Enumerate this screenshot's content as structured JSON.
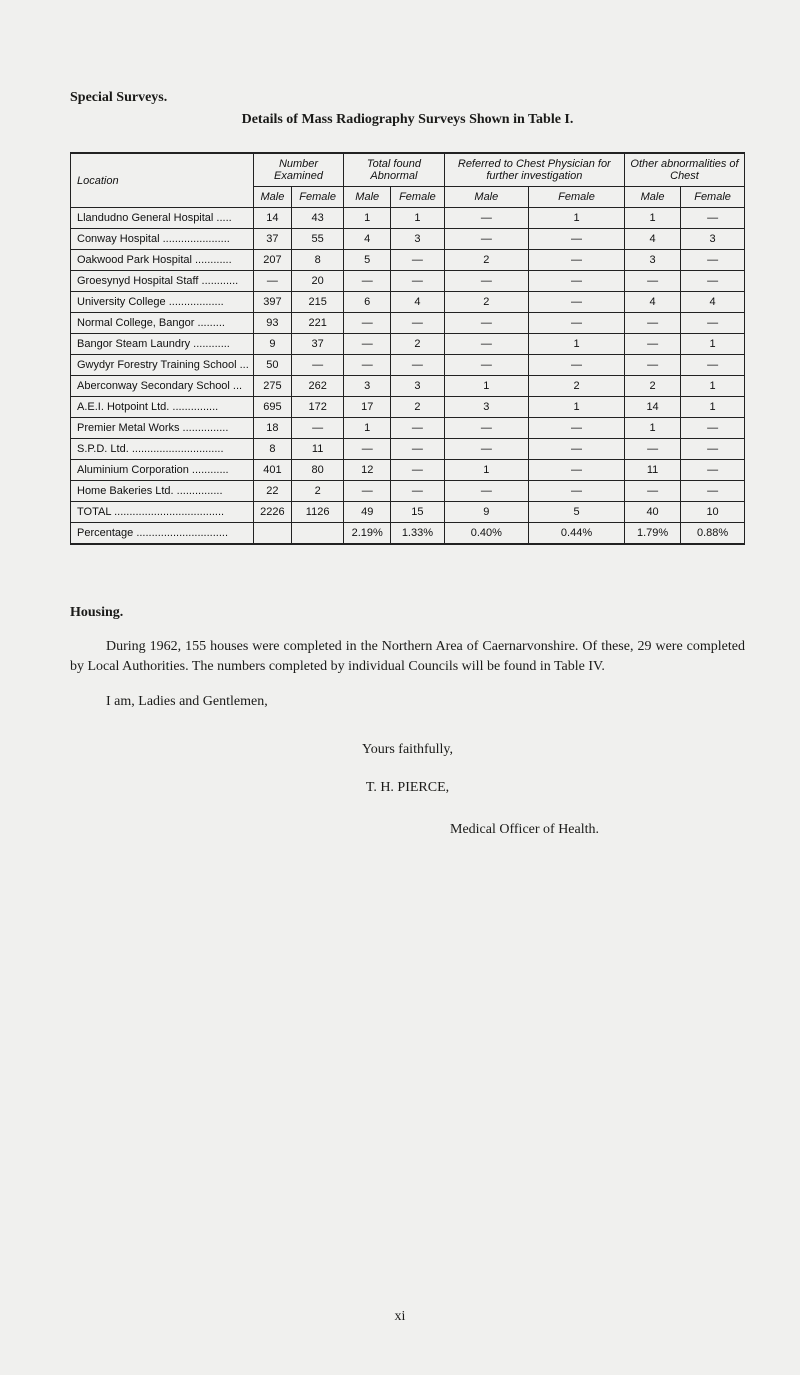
{
  "heading1": "Special Surveys.",
  "heading2": "Details of Mass Radiography Surveys Shown in Table I.",
  "table": {
    "header": {
      "location": "Location",
      "groups": [
        {
          "title": "Number\nExamined",
          "cols": [
            "Male",
            "Female"
          ]
        },
        {
          "title": "Total\nfound\nAbnormal",
          "cols": [
            "Male",
            "Female"
          ]
        },
        {
          "title": "Referred to\nChest Physician\nfor further\ninvestigation",
          "cols": [
            "Male",
            "Female"
          ]
        },
        {
          "title": "Other\nabnormalities\nof Chest",
          "cols": [
            "Male",
            "Female"
          ]
        }
      ]
    },
    "rows": [
      {
        "loc": "Llandudno General Hospital .....",
        "c": [
          "14",
          "43",
          "1",
          "1",
          "—",
          "1",
          "1",
          "—"
        ]
      },
      {
        "loc": "Conway Hospital ......................",
        "c": [
          "37",
          "55",
          "4",
          "3",
          "—",
          "—",
          "4",
          "3"
        ]
      },
      {
        "loc": "Oakwood Park Hospital ............",
        "c": [
          "207",
          "8",
          "5",
          "—",
          "2",
          "—",
          "3",
          "—"
        ]
      },
      {
        "loc": "Groesynyd Hospital Staff ............",
        "c": [
          "—",
          "20",
          "—",
          "—",
          "—",
          "—",
          "—",
          "—"
        ]
      },
      {
        "loc": "University College ..................",
        "c": [
          "397",
          "215",
          "6",
          "4",
          "2",
          "—",
          "4",
          "4"
        ]
      },
      {
        "loc": "Normal College, Bangor .........",
        "c": [
          "93",
          "221",
          "—",
          "—",
          "—",
          "—",
          "—",
          "—"
        ]
      },
      {
        "loc": "Bangor Steam Laundry ............",
        "c": [
          "9",
          "37",
          "—",
          "2",
          "—",
          "1",
          "—",
          "1"
        ]
      },
      {
        "loc": "Gwydyr Forestry Training School ...",
        "c": [
          "50",
          "—",
          "—",
          "—",
          "—",
          "—",
          "—",
          "—"
        ]
      },
      {
        "loc": "Aberconway Secondary School ...",
        "c": [
          "275",
          "262",
          "3",
          "3",
          "1",
          "2",
          "2",
          "1"
        ]
      },
      {
        "loc": "A.E.I. Hotpoint Ltd. ...............",
        "c": [
          "695",
          "172",
          "17",
          "2",
          "3",
          "1",
          "14",
          "1"
        ]
      },
      {
        "loc": "Premier Metal Works ...............",
        "c": [
          "18",
          "—",
          "1",
          "—",
          "—",
          "—",
          "1",
          "—"
        ]
      },
      {
        "loc": "S.P.D. Ltd. ..............................",
        "c": [
          "8",
          "11",
          "—",
          "—",
          "—",
          "—",
          "—",
          "—"
        ]
      },
      {
        "loc": "Aluminium Corporation ............",
        "c": [
          "401",
          "80",
          "12",
          "—",
          "1",
          "—",
          "11",
          "—"
        ]
      },
      {
        "loc": "Home Bakeries Ltd. ...............",
        "c": [
          "22",
          "2",
          "—",
          "—",
          "—",
          "—",
          "—",
          "—"
        ]
      },
      {
        "loc": "TOTAL ....................................",
        "c": [
          "2226",
          "1126",
          "49",
          "15",
          "9",
          "5",
          "40",
          "10"
        ]
      },
      {
        "loc": "Percentage ..............................",
        "c": [
          "",
          "",
          "2.19%",
          "1.33%",
          "0.40%",
          "0.44%",
          "1.79%",
          "0.88%"
        ]
      }
    ]
  },
  "housing": {
    "title": "Housing.",
    "para": "During 1962, 155 houses were completed in the Northern Area of Caernarvonshire. Of these, 29 were completed by Local Authorities. The numbers completed by individual Councils will be found in Table IV."
  },
  "closing_line": "I am, Ladies and Gentlemen,",
  "yours": "Yours faithfully,",
  "signature": "T. H. PIERCE,",
  "role": "Medical Officer of Health.",
  "folio": "xi"
}
